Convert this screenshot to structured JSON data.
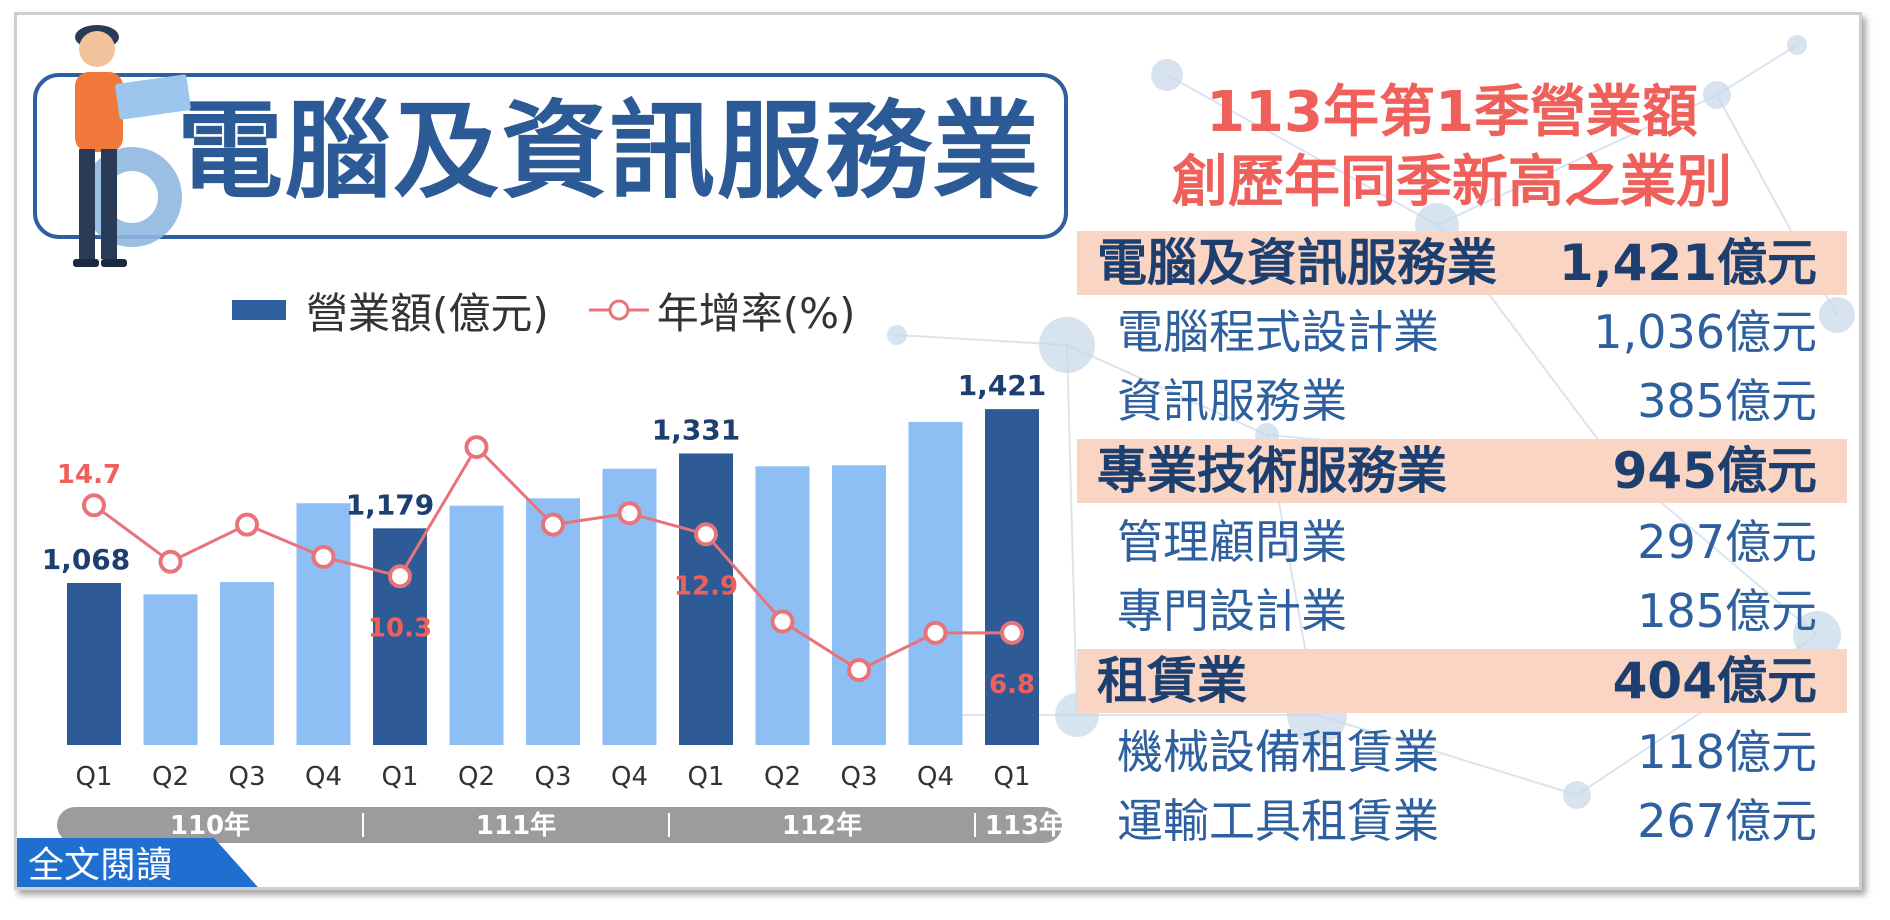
{
  "title": "電腦及資訊服務業",
  "right_panel": {
    "title_line1": "113年第1季營業額",
    "title_line2": "創歷年同季新高之業別",
    "rows": [
      {
        "label": "電腦及資訊服務業",
        "value": "1,421億元",
        "major": true
      },
      {
        "label": "電腦程式設計業",
        "value": "1,036億元",
        "major": false
      },
      {
        "label": "資訊服務業",
        "value": "385億元",
        "major": false
      },
      {
        "label": "專業技術服務業",
        "value": "945億元",
        "major": true
      },
      {
        "label": "管理顧問業",
        "value": "297億元",
        "major": false
      },
      {
        "label": "專門設計業",
        "value": "185億元",
        "major": false
      },
      {
        "label": "租賃業",
        "value": "404億元",
        "major": true
      },
      {
        "label": "機械設備租賃業",
        "value": "118億元",
        "major": false
      },
      {
        "label": "運輸工具租賃業",
        "value": "267億元",
        "major": false
      }
    ]
  },
  "read_more_label": "全文閱讀",
  "colors": {
    "bar_highlight": "#2e5a96",
    "bar_normal": "#8dbff5",
    "line": "#e8737a",
    "title_blue": "#2b5a97",
    "accent_red": "#f0605a",
    "major_row_bg": "#fbd5c4"
  },
  "chart_data": {
    "type": "bar",
    "legend": {
      "bar_name": "營業額(億元)",
      "line_name": "年增率(%)"
    },
    "categories": [
      "Q1",
      "Q2",
      "Q3",
      "Q4",
      "Q1",
      "Q2",
      "Q3",
      "Q4",
      "Q1",
      "Q2",
      "Q3",
      "Q4",
      "Q1"
    ],
    "year_groups": [
      {
        "label": "110年",
        "span": 4
      },
      {
        "label": "111年",
        "span": 4
      },
      {
        "label": "112年",
        "span": 4
      },
      {
        "label": "113年",
        "span": 1
      }
    ],
    "series": [
      {
        "name": "營業額(億元)",
        "type": "bar",
        "values": [
          1068,
          1045,
          1070,
          1230,
          1179,
          1225,
          1240,
          1300,
          1331,
          1305,
          1307,
          1395,
          1421
        ],
        "highlight": [
          true,
          false,
          false,
          false,
          true,
          false,
          false,
          false,
          true,
          false,
          false,
          false,
          true
        ],
        "labels": [
          "1,068",
          "",
          "",
          "",
          "1,179",
          "",
          "",
          "",
          "1,331",
          "",
          "",
          "",
          "1,421"
        ]
      },
      {
        "name": "年增率(%)",
        "type": "line",
        "values": [
          14.7,
          11.2,
          13.5,
          11.5,
          10.3,
          18.3,
          13.5,
          14.2,
          12.9,
          7.5,
          4.5,
          6.8,
          6.8
        ],
        "labels": [
          "14.7",
          "",
          "",
          "",
          "10.3",
          "",
          "",
          "",
          "12.9",
          "",
          "",
          "",
          "6.8"
        ]
      }
    ],
    "bar_axis_range": [
      0,
      1500
    ],
    "line_axis_range": [
      -2,
      24
    ],
    "grid": false
  }
}
